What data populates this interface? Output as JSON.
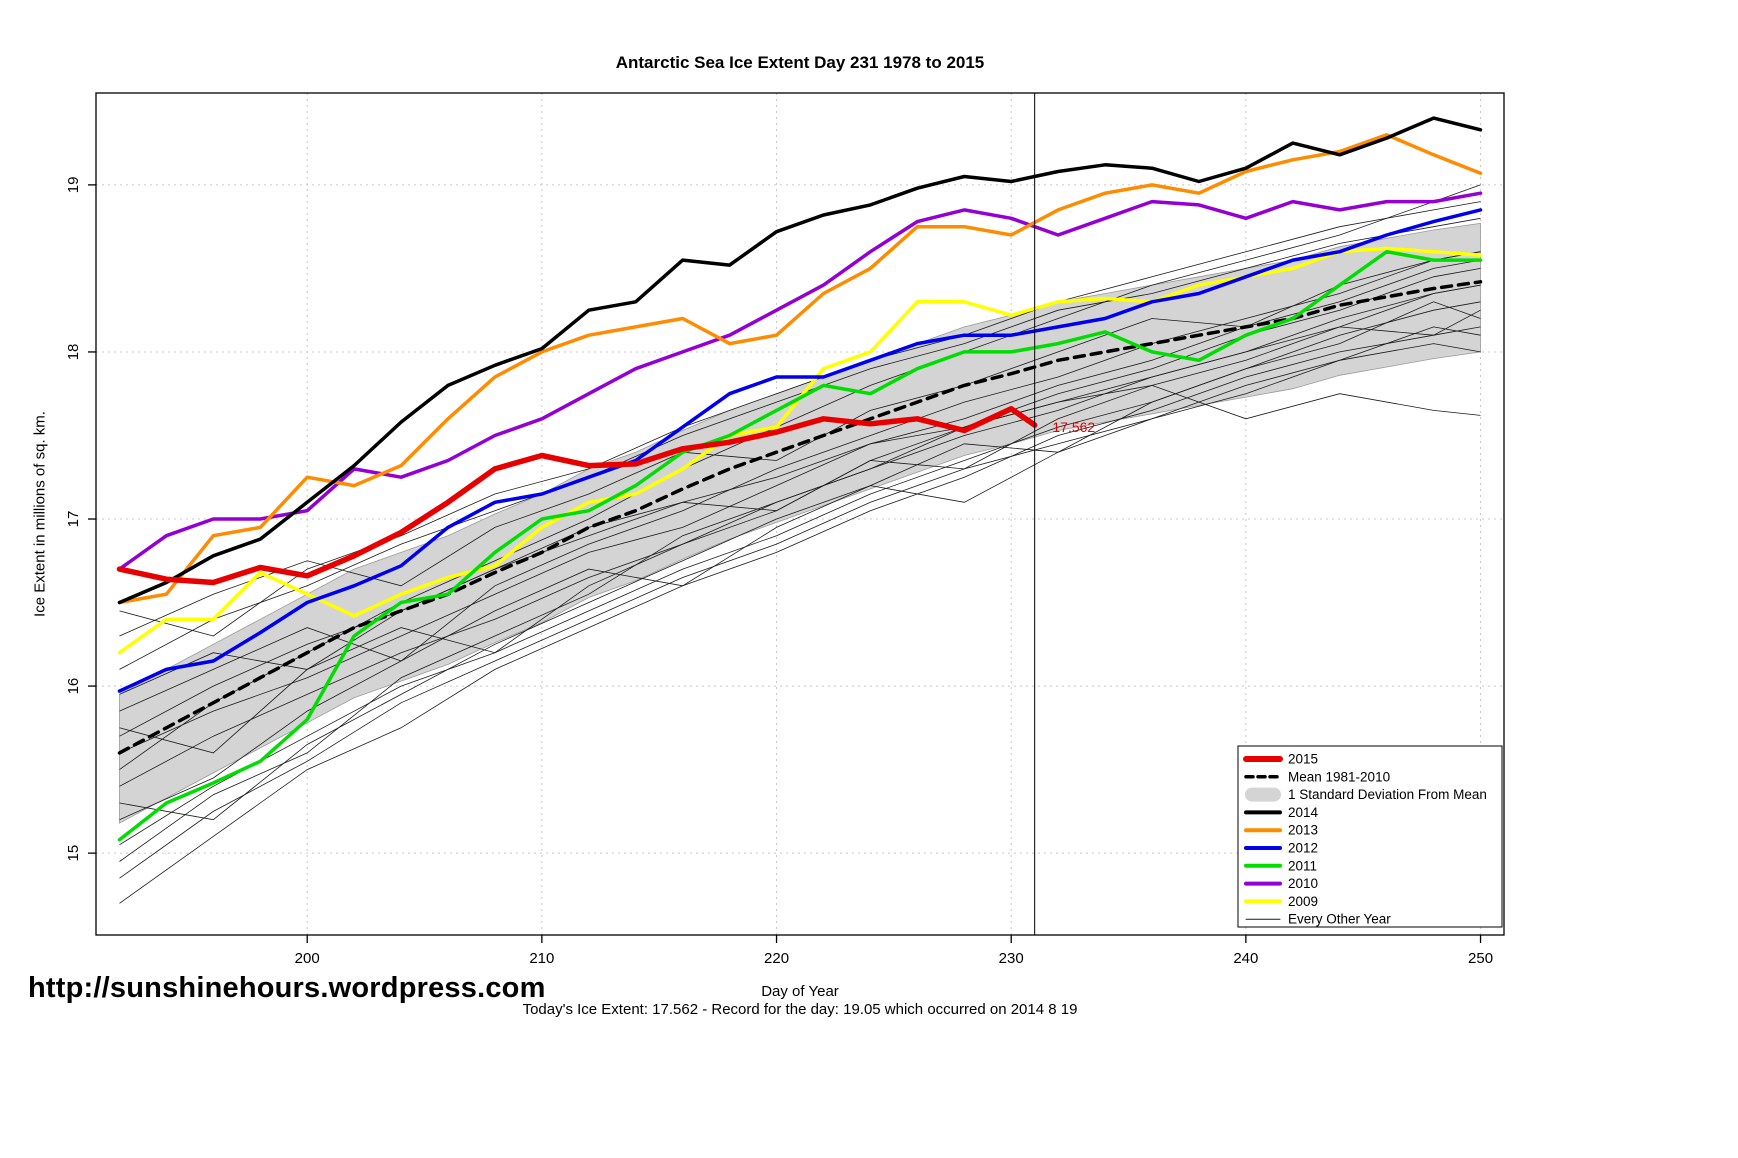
{
  "page": {
    "url_text": "http://sunshinehours.wordpress.com",
    "footer_note": "Today's Ice Extent: 17.562  - Record for the day: 19.05 which occurred on 2014 8 19"
  },
  "chart_data": {
    "type": "line",
    "title": "Antarctic Sea Ice Extent Day 231 1978 to 2015",
    "xlabel": "Day of Year",
    "ylabel": "Ice Extent in millions of sq. km.",
    "xlim": [
      191,
      251
    ],
    "ylim": [
      14.51,
      19.55
    ],
    "xticks": [
      200,
      210,
      220,
      230,
      240,
      250
    ],
    "yticks": [
      15,
      16,
      17,
      18,
      19
    ],
    "grid": true,
    "marker_day": 231,
    "annotation": {
      "text": "17.562",
      "x": 231.5,
      "y": 17.55,
      "color": "#e60000"
    },
    "x": [
      192,
      194,
      196,
      198,
      200,
      202,
      204,
      206,
      208,
      210,
      212,
      214,
      216,
      218,
      220,
      222,
      224,
      226,
      228,
      230,
      232,
      234,
      236,
      238,
      240,
      242,
      244,
      246,
      248,
      250
    ],
    "band": {
      "label": "1 Standard Deviation From Mean",
      "color": "#d4d4d4",
      "upper": [
        15.95,
        16.1,
        16.25,
        16.4,
        16.55,
        16.7,
        16.8,
        16.9,
        17.03,
        17.15,
        17.3,
        17.4,
        17.53,
        17.65,
        17.75,
        17.85,
        17.95,
        18.05,
        18.15,
        18.22,
        18.3,
        18.35,
        18.4,
        18.45,
        18.5,
        18.55,
        18.63,
        18.68,
        18.73,
        18.77
      ],
      "lower": [
        15.18,
        15.33,
        15.48,
        15.63,
        15.78,
        15.93,
        16.03,
        16.13,
        16.26,
        16.38,
        16.53,
        16.63,
        16.76,
        16.88,
        16.98,
        17.08,
        17.18,
        17.28,
        17.38,
        17.45,
        17.53,
        17.58,
        17.63,
        17.68,
        17.73,
        17.78,
        17.86,
        17.91,
        17.96,
        18.0
      ]
    },
    "series": [
      {
        "name": "Mean 1981-2010",
        "color": "#000000",
        "width": 3.5,
        "dash": "10,7",
        "values": [
          15.6,
          15.75,
          15.9,
          16.05,
          16.2,
          16.35,
          16.45,
          16.55,
          16.68,
          16.8,
          16.95,
          17.05,
          17.18,
          17.3,
          17.4,
          17.5,
          17.6,
          17.7,
          17.8,
          17.87,
          17.95,
          18.0,
          18.05,
          18.1,
          18.15,
          18.2,
          18.28,
          18.33,
          18.38,
          18.42
        ]
      },
      {
        "name": "2009",
        "color": "#ffff00",
        "width": 3.5,
        "values": [
          16.2,
          16.4,
          16.4,
          16.68,
          16.55,
          16.42,
          16.55,
          16.65,
          16.72,
          16.95,
          17.1,
          17.15,
          17.3,
          17.5,
          17.55,
          17.9,
          18.0,
          18.3,
          18.3,
          18.22,
          18.3,
          18.32,
          18.3,
          18.4,
          18.45,
          18.5,
          18.6,
          18.62,
          18.6,
          18.58
        ]
      },
      {
        "name": "2010",
        "color": "#9400d3",
        "width": 3.5,
        "values": [
          16.7,
          16.9,
          17.0,
          17.0,
          17.05,
          17.3,
          17.25,
          17.35,
          17.5,
          17.6,
          17.75,
          17.9,
          18.0,
          18.1,
          18.25,
          18.4,
          18.6,
          18.78,
          18.85,
          18.8,
          18.7,
          18.8,
          18.9,
          18.88,
          18.8,
          18.9,
          18.85,
          18.9,
          18.9,
          18.95
        ]
      },
      {
        "name": "2011",
        "color": "#00dd00",
        "width": 3.5,
        "values": [
          15.08,
          15.3,
          15.42,
          15.55,
          15.8,
          16.3,
          16.5,
          16.55,
          16.8,
          17.0,
          17.05,
          17.2,
          17.4,
          17.5,
          17.65,
          17.8,
          17.75,
          17.9,
          18.0,
          18.0,
          18.05,
          18.12,
          18.0,
          17.95,
          18.1,
          18.2,
          18.4,
          18.6,
          18.55,
          18.55
        ]
      },
      {
        "name": "2012",
        "color": "#0000ee",
        "width": 3.5,
        "values": [
          15.97,
          16.1,
          16.15,
          16.32,
          16.5,
          16.6,
          16.72,
          16.95,
          17.1,
          17.15,
          17.25,
          17.35,
          17.55,
          17.75,
          17.85,
          17.85,
          17.95,
          18.05,
          18.1,
          18.1,
          18.15,
          18.2,
          18.3,
          18.35,
          18.45,
          18.55,
          18.6,
          18.7,
          18.78,
          18.85
        ]
      },
      {
        "name": "2013",
        "color": "#ff8c00",
        "width": 3.5,
        "values": [
          16.5,
          16.55,
          16.9,
          16.95,
          17.25,
          17.2,
          17.32,
          17.6,
          17.85,
          18.0,
          18.1,
          18.15,
          18.2,
          18.05,
          18.1,
          18.35,
          18.5,
          18.75,
          18.75,
          18.7,
          18.85,
          18.95,
          19.0,
          18.95,
          19.08,
          19.15,
          19.2,
          19.3,
          19.18,
          19.07
        ]
      },
      {
        "name": "2014",
        "color": "#000000",
        "width": 3.5,
        "values": [
          16.5,
          16.62,
          16.78,
          16.88,
          17.1,
          17.32,
          17.58,
          17.8,
          17.92,
          18.02,
          18.25,
          18.3,
          18.55,
          18.52,
          18.72,
          18.82,
          18.88,
          18.98,
          19.05,
          19.02,
          19.08,
          19.12,
          19.1,
          19.02,
          19.1,
          19.25,
          19.18,
          19.28,
          19.4,
          19.33
        ]
      },
      {
        "name": "2015",
        "color": "#e60000",
        "width": 5.5,
        "x": [
          192,
          194,
          196,
          198,
          200,
          202,
          204,
          206,
          208,
          210,
          212,
          214,
          216,
          218,
          220,
          222,
          224,
          226,
          228,
          230,
          231
        ],
        "values": [
          16.7,
          16.64,
          16.62,
          16.71,
          16.66,
          16.78,
          16.92,
          17.1,
          17.3,
          17.38,
          17.32,
          17.33,
          17.42,
          17.46,
          17.52,
          17.6,
          17.57,
          17.6,
          17.53,
          17.66,
          17.562
        ]
      }
    ],
    "background_years": {
      "label": "Every Other Year",
      "color": "#1a1a1a",
      "x": [
        192,
        196,
        200,
        204,
        208,
        212,
        216,
        220,
        224,
        228,
        232,
        236,
        240,
        244,
        248,
        250
      ],
      "lines": [
        [
          14.95,
          15.35,
          15.6,
          16.05,
          16.3,
          16.55,
          16.9,
          17.1,
          17.3,
          17.55,
          17.7,
          17.85,
          18.0,
          18.2,
          18.35,
          18.4
        ],
        [
          15.75,
          15.6,
          16.1,
          16.35,
          16.2,
          16.6,
          16.85,
          17.05,
          17.35,
          17.3,
          17.6,
          17.8,
          17.95,
          18.15,
          18.1,
          18.25
        ],
        [
          15.2,
          15.45,
          15.85,
          16.15,
          16.45,
          16.7,
          16.6,
          16.95,
          17.2,
          17.45,
          17.4,
          17.7,
          17.9,
          18.05,
          18.3,
          18.2
        ],
        [
          16.3,
          16.55,
          16.75,
          16.6,
          16.95,
          17.15,
          17.4,
          17.35,
          17.65,
          17.8,
          18.0,
          18.2,
          18.15,
          18.4,
          18.55,
          18.6
        ],
        [
          14.7,
          15.1,
          15.5,
          15.75,
          16.1,
          16.35,
          16.6,
          16.8,
          17.05,
          17.25,
          17.5,
          17.65,
          17.85,
          18.0,
          18.1,
          18.15
        ],
        [
          15.5,
          15.9,
          16.2,
          16.5,
          16.75,
          17.0,
          17.3,
          17.55,
          17.8,
          18.0,
          18.2,
          18.4,
          18.55,
          18.7,
          18.9,
          19.0
        ],
        [
          15.95,
          16.2,
          16.1,
          16.45,
          16.7,
          16.95,
          17.1,
          17.05,
          17.35,
          17.55,
          17.75,
          17.9,
          18.1,
          18.25,
          18.45,
          18.5
        ],
        [
          15.3,
          15.2,
          15.65,
          15.95,
          16.25,
          16.5,
          16.75,
          17.0,
          17.2,
          17.1,
          17.4,
          17.6,
          17.75,
          17.95,
          18.15,
          18.1
        ],
        [
          16.1,
          16.4,
          16.6,
          16.85,
          17.05,
          17.25,
          17.5,
          17.7,
          17.9,
          18.05,
          18.25,
          18.35,
          18.5,
          18.65,
          18.75,
          18.8
        ],
        [
          15.6,
          15.85,
          16.05,
          16.3,
          16.55,
          16.8,
          16.95,
          17.2,
          17.45,
          17.6,
          17.8,
          17.95,
          18.15,
          18.3,
          18.5,
          18.55
        ],
        [
          15.05,
          15.4,
          15.7,
          16.0,
          16.2,
          16.45,
          16.7,
          16.9,
          17.15,
          17.35,
          17.55,
          17.7,
          17.9,
          18.1,
          18.25,
          18.3
        ],
        [
          16.45,
          16.3,
          16.7,
          16.9,
          17.15,
          17.3,
          17.55,
          17.75,
          17.95,
          18.1,
          18.3,
          18.45,
          18.6,
          18.75,
          18.85,
          18.9
        ],
        [
          15.85,
          16.1,
          16.35,
          16.15,
          16.6,
          16.85,
          17.05,
          17.3,
          17.5,
          17.7,
          17.85,
          18.05,
          18.2,
          18.35,
          18.55,
          18.6
        ],
        [
          15.4,
          15.7,
          15.95,
          16.2,
          16.4,
          16.65,
          16.85,
          17.1,
          17.3,
          17.5,
          17.65,
          17.85,
          18.0,
          18.15,
          18.35,
          18.4
        ],
        [
          14.85,
          15.25,
          15.55,
          15.9,
          16.15,
          16.4,
          16.65,
          16.85,
          17.1,
          17.3,
          17.45,
          17.6,
          17.8,
          17.95,
          18.05,
          18.0
        ],
        [
          15.7,
          16.0,
          16.25,
          16.45,
          16.7,
          16.9,
          17.1,
          17.25,
          17.45,
          17.55,
          17.7,
          17.8,
          17.6,
          17.75,
          17.65,
          17.62
        ]
      ]
    },
    "legend": {
      "position": "bottom-right",
      "items": [
        {
          "label": "2015",
          "color": "#e60000",
          "style": "thick"
        },
        {
          "label": "Mean 1981-2010",
          "color": "#000000",
          "style": "dashed"
        },
        {
          "label": "1 Standard Deviation From Mean",
          "color": "#d4d4d4",
          "style": "band"
        },
        {
          "label": "2014",
          "color": "#000000",
          "style": "thick"
        },
        {
          "label": "2013",
          "color": "#ff8c00",
          "style": "thick"
        },
        {
          "label": "2012",
          "color": "#0000ee",
          "style": "thick"
        },
        {
          "label": "2011",
          "color": "#00dd00",
          "style": "thick"
        },
        {
          "label": "2010",
          "color": "#9400d3",
          "style": "thick"
        },
        {
          "label": "2009",
          "color": "#ffff00",
          "style": "thick"
        },
        {
          "label": "Every Other Year",
          "color": "#1a1a1a",
          "style": "thin"
        }
      ]
    }
  }
}
